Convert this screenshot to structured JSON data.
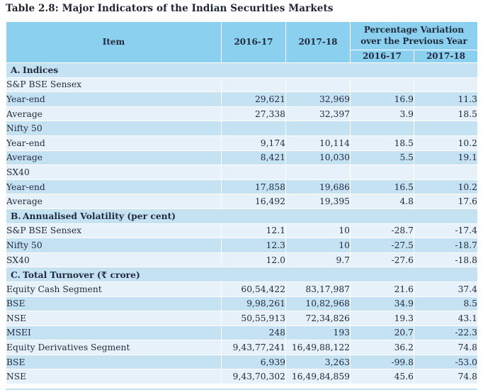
{
  "title": "Table 2.8: Major Indicators of the Indian Securities Markets",
  "colors": {
    "header_bg": "#8BD0EE",
    "row_dark": "#C5E2F3",
    "row_light": "#E6F1F9",
    "text": "#222B3E"
  },
  "table": {
    "columns": {
      "item": "Item",
      "year1": "2016-17",
      "year2": "2017-18",
      "variation_group": "Percentage Variation over the Previous Year",
      "variation_year1": "2016-17",
      "variation_year2": "2017-18"
    },
    "rows": [
      {
        "prefix": "A.",
        "label": "Indices",
        "type": "section",
        "level": 0,
        "values": [
          "",
          "",
          "",
          ""
        ]
      },
      {
        "label": "S&P BSE Sensex",
        "type": "group",
        "level": 1,
        "values": [
          "",
          "",
          "",
          ""
        ]
      },
      {
        "label": "Year-end",
        "type": "data",
        "level": 2,
        "values": [
          "29,621",
          "32,969",
          "16.9",
          "11.3"
        ]
      },
      {
        "label": "Average",
        "type": "data",
        "level": 2,
        "values": [
          "27,338",
          "32,397",
          "3.9",
          "18.5"
        ]
      },
      {
        "label": "Nifty 50",
        "type": "group",
        "level": 1,
        "values": [
          "",
          "",
          "",
          ""
        ]
      },
      {
        "label": "Year-end",
        "type": "data",
        "level": 2,
        "values": [
          "9,174",
          "10,114",
          "18.5",
          "10.2"
        ]
      },
      {
        "label": "Average",
        "type": "data",
        "level": 2,
        "values": [
          "8,421",
          "10,030",
          "5.5",
          "19.1"
        ]
      },
      {
        "label": "SX40",
        "type": "group",
        "level": 1,
        "values": [
          "",
          "",
          "",
          ""
        ]
      },
      {
        "label": "Year-end",
        "type": "data",
        "level": 2,
        "values": [
          "17,858",
          "19,686",
          "16.5",
          "10.2"
        ]
      },
      {
        "label": "Average",
        "type": "data",
        "level": 2,
        "values": [
          "16,492",
          "19,395",
          "4.8",
          "17.6"
        ]
      },
      {
        "prefix": "B.",
        "label": "Annualised Volatility (per cent)",
        "type": "section",
        "level": 0,
        "values": [
          "",
          "",
          "",
          ""
        ]
      },
      {
        "label": "S&P BSE Sensex",
        "type": "data",
        "level": 1,
        "values": [
          "12.1",
          "10",
          "-28.7",
          "-17.4"
        ]
      },
      {
        "label": "Nifty 50",
        "type": "data",
        "level": 1,
        "values": [
          "12.3",
          "10",
          "-27.5",
          "-18.7"
        ]
      },
      {
        "label": "SX40",
        "type": "data",
        "level": 1,
        "values": [
          "12.0",
          "9.7",
          "-27.6",
          "-18.8"
        ]
      },
      {
        "prefix": "C.",
        "label": "Total Turnover (₹ crore)",
        "type": "section",
        "level": 0,
        "values": [
          "",
          "",
          "",
          ""
        ]
      },
      {
        "label": "Equity Cash Segment",
        "type": "data",
        "level": 1,
        "values": [
          "60,54,422",
          "83,17,987",
          "21.6",
          "37.4"
        ]
      },
      {
        "label": "BSE",
        "type": "data",
        "level": 2,
        "values": [
          "9,98,261",
          "10,82,968",
          "34.9",
          "8.5"
        ]
      },
      {
        "label": "NSE",
        "type": "data",
        "level": 2,
        "values": [
          "50,55,913",
          "72,34,826",
          "19.3",
          "43.1"
        ]
      },
      {
        "label": "MSEI",
        "type": "data",
        "level": 2,
        "values": [
          "248",
          "193",
          "20.7",
          "-22.3"
        ]
      },
      {
        "label": "Equity Derivatives Segment",
        "type": "data",
        "level": 1,
        "values": [
          "9,43,77,241",
          "16,49,88,122",
          "36.2",
          "74.8"
        ]
      },
      {
        "label": "BSE",
        "type": "data",
        "level": 2,
        "values": [
          "6,939",
          "3,263",
          "-99.8",
          "-53.0"
        ]
      },
      {
        "label": "NSE",
        "type": "data",
        "level": 2,
        "values": [
          "9,43,70,302",
          "16,49,84,859",
          "45.6",
          "74.8"
        ]
      }
    ]
  }
}
